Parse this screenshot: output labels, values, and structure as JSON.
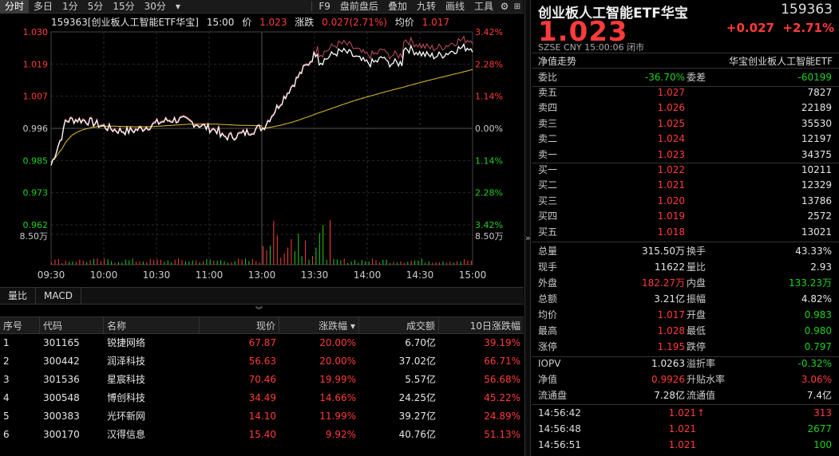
{
  "toolbar": {
    "tabs": [
      "分时",
      "多日",
      "1分",
      "5分",
      "15分",
      "30分"
    ],
    "dropdown": "▾",
    "tools": [
      "F9",
      "盘前盘后",
      "叠加",
      "九转",
      "画线",
      "工具"
    ]
  },
  "infoline": {
    "name": "159363[创业板人工智能ETF华宝]",
    "time": "15:00",
    "price_label": "价",
    "price": "1.023",
    "chg_label": "涨跌",
    "chg": "0.027(2.71%)",
    "avg_label": "均价",
    "avg": "1.017"
  },
  "chart_data": {
    "type": "line",
    "y_left_ticks": [
      "1.030",
      "1.019",
      "1.007",
      "0.996",
      "0.985",
      "0.973",
      "0.962"
    ],
    "y_right_ticks": [
      "3.42%",
      "2.28%",
      "1.14%",
      "0.00%",
      "1.14%",
      "2.28%",
      "3.42%"
    ],
    "vol_tick": "8.50万",
    "x_ticks": [
      "09:30",
      "10:00",
      "10:30",
      "11:00",
      "13:00",
      "13:30",
      "14:00",
      "14:30",
      "15:00"
    ],
    "ylim": [
      0.962,
      1.03
    ],
    "base": 0.996
  },
  "subtabs": [
    "量比",
    "MACD"
  ],
  "collapse_icon": "double-chevron-down-icon",
  "table": {
    "headers": [
      "序号",
      "代码",
      "名称",
      "现价",
      "涨跌幅",
      "成交额",
      "10日涨跌幅"
    ],
    "sort_icon": "▾",
    "rows": [
      [
        "1",
        "301165",
        "锐捷网络",
        "67.87",
        "20.00%",
        "6.70亿",
        "39.19%"
      ],
      [
        "2",
        "300442",
        "润泽科技",
        "56.63",
        "20.00%",
        "37.02亿",
        "66.71%"
      ],
      [
        "3",
        "301536",
        "星宸科技",
        "70.46",
        "19.99%",
        "5.57亿",
        "56.68%"
      ],
      [
        "4",
        "300548",
        "博创科技",
        "34.49",
        "14.66%",
        "24.25亿",
        "45.22%"
      ],
      [
        "5",
        "300383",
        "光环新网",
        "14.10",
        "11.99%",
        "39.27亿",
        "24.89%"
      ],
      [
        "6",
        "300170",
        "汉得信息",
        "15.40",
        "9.92%",
        "40.76亿",
        "51.13%"
      ]
    ]
  },
  "divider_icon": "»",
  "quote": {
    "title": "创业板人工智能ETF华宝",
    "code": "159363",
    "price": "1.023",
    "change": "+0.027",
    "change_pct": "+2.71%",
    "meta": "SZSE  CNY  15:00:06  闭市",
    "nav_label": "净值走势",
    "fund_name": "华宝创业板人工智能ETF",
    "weibi_label": "委比",
    "weibi": "-36.70%",
    "weicha_label": "委差",
    "weicha": "-60199",
    "asks": [
      {
        "label": "卖五",
        "price": "1.027",
        "vol": "7827"
      },
      {
        "label": "卖四",
        "price": "1.026",
        "vol": "22189"
      },
      {
        "label": "卖三",
        "price": "1.025",
        "vol": "35530"
      },
      {
        "label": "卖二",
        "price": "1.024",
        "vol": "12197"
      },
      {
        "label": "卖一",
        "price": "1.023",
        "vol": "34375"
      }
    ],
    "bids": [
      {
        "label": "买一",
        "price": "1.022",
        "vol": "10211"
      },
      {
        "label": "买二",
        "price": "1.021",
        "vol": "12329"
      },
      {
        "label": "买三",
        "price": "1.020",
        "vol": "13786"
      },
      {
        "label": "买四",
        "price": "1.019",
        "vol": "2572"
      },
      {
        "label": "买五",
        "price": "1.018",
        "vol": "13021"
      }
    ],
    "stats": [
      {
        "l1": "总量",
        "v1": "315.50万",
        "c1": "white",
        "l2": "换手",
        "v2": "43.33%",
        "c2": "white"
      },
      {
        "l1": "现手",
        "v1": "11622",
        "c1": "white",
        "l2": "量比",
        "v2": "2.93",
        "c2": "white"
      },
      {
        "l1": "外盘",
        "v1": "182.27万",
        "c1": "red",
        "l2": "内盘",
        "v2": "133.23万",
        "c2": "green"
      },
      {
        "l1": "总额",
        "v1": "3.21亿",
        "c1": "white",
        "l2": "振幅",
        "v2": "4.82%",
        "c2": "white"
      },
      {
        "l1": "均价",
        "v1": "1.017",
        "c1": "red",
        "l2": "开盘",
        "v2": "0.983",
        "c2": "green"
      },
      {
        "l1": "最高",
        "v1": "1.028",
        "c1": "red",
        "l2": "最低",
        "v2": "0.980",
        "c2": "green"
      },
      {
        "l1": "涨停",
        "v1": "1.195",
        "c1": "red",
        "l2": "跌停",
        "v2": "0.797",
        "c2": "green"
      }
    ],
    "iopv": [
      {
        "l1": "IOPV",
        "v1": "1.0263",
        "c1": "white",
        "l2": "溢折率",
        "v2": "-0.32%",
        "c2": "green"
      },
      {
        "l1": "净值",
        "v1": "0.9926",
        "c1": "red",
        "l2": "升贴水率",
        "v2": "3.06%",
        "c2": "red"
      },
      {
        "l1": "流通盘",
        "v1": "7.28亿",
        "c1": "white",
        "l2": "流通值",
        "v2": "7.4亿",
        "c2": "white"
      }
    ],
    "ticks": [
      {
        "time": "14:56:42",
        "price": "1.021",
        "arrow": "↑",
        "vol": "313",
        "vc": "red"
      },
      {
        "time": "14:56:48",
        "price": "1.021",
        "arrow": "",
        "vol": "2677",
        "vc": "green"
      },
      {
        "time": "14:56:51",
        "price": "1.021",
        "arrow": "",
        "vol": "100",
        "vc": "green"
      }
    ]
  },
  "colors": {
    "up": "#ff3b3b",
    "down": "#1fd11f",
    "price_line": "#ffffff",
    "avg_line": "#e8c030"
  }
}
